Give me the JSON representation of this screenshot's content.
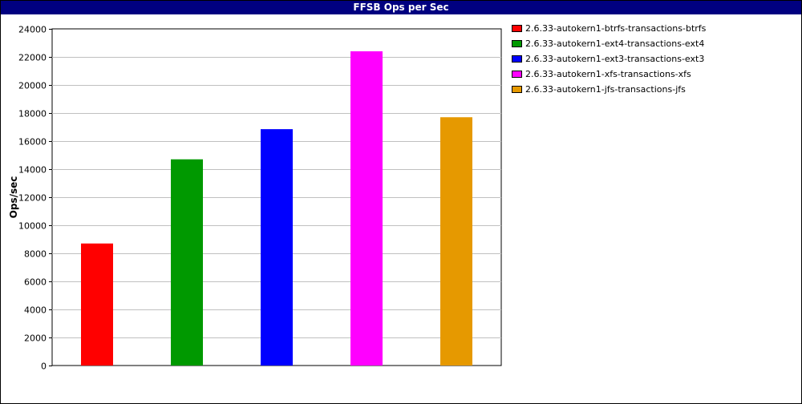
{
  "chart_data": {
    "type": "bar",
    "title": "FFSB Ops per Sec",
    "ylabel": "Ops/sec",
    "xlabel": "",
    "ylim": [
      0,
      24000
    ],
    "yticks": [
      0,
      2000,
      4000,
      6000,
      8000,
      10000,
      12000,
      14000,
      16000,
      18000,
      20000,
      22000,
      24000
    ],
    "grid": true,
    "legend_position": "right",
    "series": [
      {
        "name": "2.6.33-autokern1-btrfs-transactions-btrfs",
        "value": 8700,
        "color": "#ff0000"
      },
      {
        "name": "2.6.33-autokern1-ext4-transactions-ext4",
        "value": 14700,
        "color": "#009900"
      },
      {
        "name": "2.6.33-autokern1-ext3-transactions-ext3",
        "value": 16850,
        "color": "#0000ff"
      },
      {
        "name": "2.6.33-autokern1-xfs-transactions-xfs",
        "value": 22400,
        "color": "#ff00ff"
      },
      {
        "name": "2.6.33-autokern1-jfs-transactions-jfs",
        "value": 17700,
        "color": "#e69900"
      }
    ]
  }
}
